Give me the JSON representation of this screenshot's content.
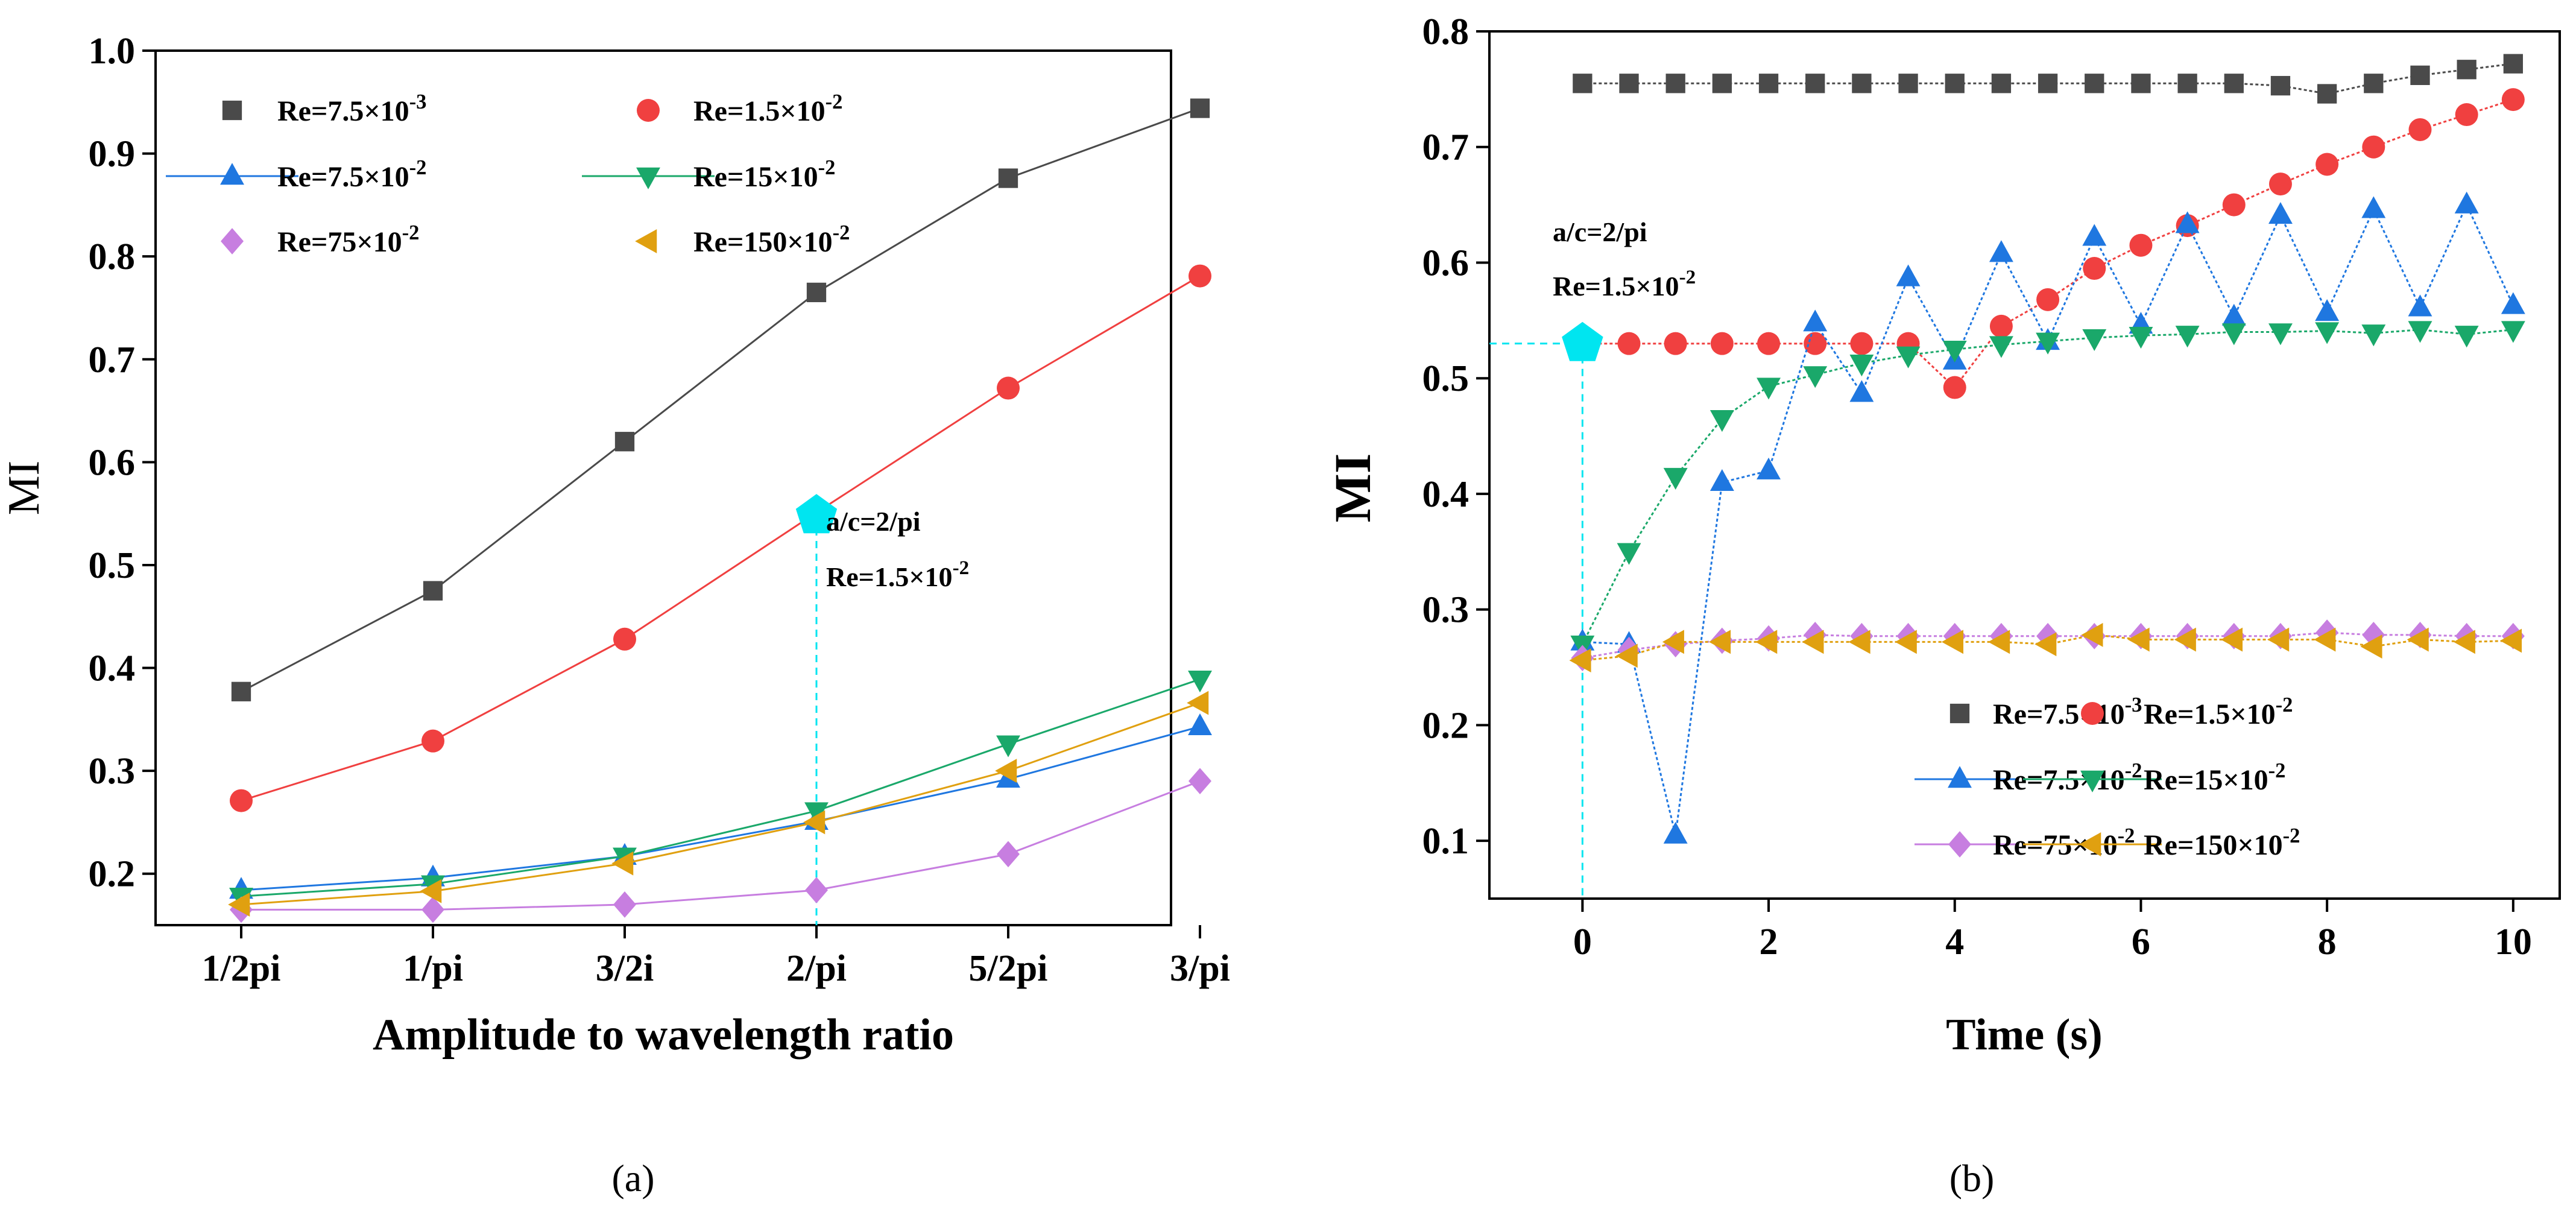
{
  "chart_data": [
    {
      "type": "line",
      "panel_label": "(a)",
      "xlabel": "Amplitude to wavelength ratio",
      "ylabel": "MI",
      "categories": [
        "1/2pi",
        "1/pi",
        "3/2i",
        "2/pi",
        "5/2pi",
        "3/pi"
      ],
      "ylim": [
        0.15,
        1.0
      ],
      "yticks": [
        "0.2",
        "0.3",
        "0.4",
        "0.5",
        "0.6",
        "0.7",
        "0.8",
        "0.9",
        "1.0"
      ],
      "legend_position": "top-left",
      "series": [
        {
          "name": "Re=7.5×10⁻³",
          "marker": "square",
          "color": "#4a4a4a",
          "values": [
            0.377,
            0.475,
            0.62,
            0.765,
            0.876,
            0.944
          ]
        },
        {
          "name": "Re=1.5×10⁻²",
          "marker": "circle",
          "color": "#f04040",
          "values": [
            0.271,
            0.329,
            0.428,
            0.551,
            0.672,
            0.781
          ]
        },
        {
          "name": "Re=7.5×10⁻²",
          "marker": "triangle-up",
          "color": "#1f77e0",
          "values": [
            0.184,
            0.196,
            0.217,
            0.251,
            0.292,
            0.343
          ]
        },
        {
          "name": "Re=15×10⁻²",
          "marker": "triangle-down",
          "color": "#1aa86a",
          "values": [
            0.178,
            0.19,
            0.217,
            0.261,
            0.326,
            0.389
          ]
        },
        {
          "name": "Re=75×10⁻²",
          "marker": "diamond",
          "color": "#c77ee0",
          "values": [
            0.165,
            0.165,
            0.17,
            0.184,
            0.219,
            0.29
          ]
        },
        {
          "name": "Re=150×10⁻²",
          "marker": "triangle-left",
          "color": "#e0a010",
          "values": [
            0.17,
            0.183,
            0.21,
            0.25,
            0.3,
            0.366
          ]
        }
      ],
      "highlight": {
        "category_index": 3,
        "value": 0.548,
        "color": "#00e5f0"
      },
      "annotations": [
        "a/c=2/pi",
        "Re=1.5×10⁻²"
      ]
    },
    {
      "type": "line",
      "panel_label": "(b)",
      "xlabel": "Time (s)",
      "ylabel": "MI",
      "xlim": [
        -1,
        10.5
      ],
      "ylim": [
        0.05,
        0.8
      ],
      "xticks": [
        0,
        2,
        4,
        6,
        8,
        10
      ],
      "yticks": [
        0.1,
        0.2,
        0.3,
        0.4,
        0.5,
        0.6,
        0.7,
        0.8
      ],
      "legend_position": "bottom-right",
      "x": [
        0,
        0.5,
        1,
        1.5,
        2,
        2.5,
        3,
        3.5,
        4,
        4.5,
        5,
        5.5,
        6,
        6.5,
        7,
        7.5,
        8,
        8.5,
        9,
        9.5,
        10
      ],
      "series": [
        {
          "name": "Re=7.5×10⁻³",
          "marker": "square",
          "color": "#4a4a4a",
          "values": [
            0.755,
            0.755,
            0.755,
            0.755,
            0.755,
            0.755,
            0.755,
            0.755,
            0.755,
            0.755,
            0.755,
            0.755,
            0.755,
            0.755,
            0.755,
            0.753,
            0.746,
            0.755,
            0.762,
            0.767,
            0.772
          ]
        },
        {
          "name": "Re=1.5×10⁻²",
          "marker": "circle",
          "color": "#f04040",
          "values": [
            0.53,
            0.53,
            0.53,
            0.53,
            0.53,
            0.53,
            0.53,
            0.53,
            0.492,
            0.545,
            0.568,
            0.595,
            0.615,
            0.632,
            0.65,
            0.668,
            0.685,
            0.7,
            0.715,
            0.728,
            0.741
          ]
        },
        {
          "name": "Re=7.5×10⁻²",
          "marker": "triangle-up",
          "color": "#1f77e0",
          "values": [
            0.272,
            0.27,
            0.105,
            0.41,
            0.42,
            0.548,
            0.487,
            0.587,
            0.515,
            0.608,
            0.532,
            0.622,
            0.546,
            0.633,
            0.553,
            0.641,
            0.557,
            0.646,
            0.561,
            0.65,
            0.563
          ]
        },
        {
          "name": "Re=15×10⁻²",
          "marker": "triangle-down",
          "color": "#1aa86a",
          "values": [
            0.27,
            0.35,
            0.415,
            0.465,
            0.493,
            0.503,
            0.513,
            0.52,
            0.525,
            0.529,
            0.532,
            0.535,
            0.537,
            0.538,
            0.54,
            0.54,
            0.541,
            0.539,
            0.542,
            0.538,
            0.542
          ]
        },
        {
          "name": "Re=75×10⁻²",
          "marker": "diamond",
          "color": "#c77ee0",
          "values": [
            0.258,
            0.265,
            0.27,
            0.273,
            0.275,
            0.278,
            0.277,
            0.277,
            0.277,
            0.277,
            0.277,
            0.277,
            0.277,
            0.277,
            0.277,
            0.277,
            0.28,
            0.278,
            0.278,
            0.277,
            0.277
          ]
        },
        {
          "name": "Re=150×10⁻²",
          "marker": "triangle-left",
          "color": "#e0a010",
          "values": [
            0.256,
            0.26,
            0.272,
            0.272,
            0.272,
            0.272,
            0.272,
            0.272,
            0.272,
            0.272,
            0.27,
            0.278,
            0.274,
            0.274,
            0.274,
            0.274,
            0.274,
            0.268,
            0.274,
            0.272,
            0.273
          ]
        }
      ],
      "highlight": {
        "x": 0,
        "value": 0.53,
        "color": "#00e5f0"
      },
      "annotations": [
        "a/c=2/pi",
        "Re=1.5×10⁻²"
      ]
    }
  ]
}
